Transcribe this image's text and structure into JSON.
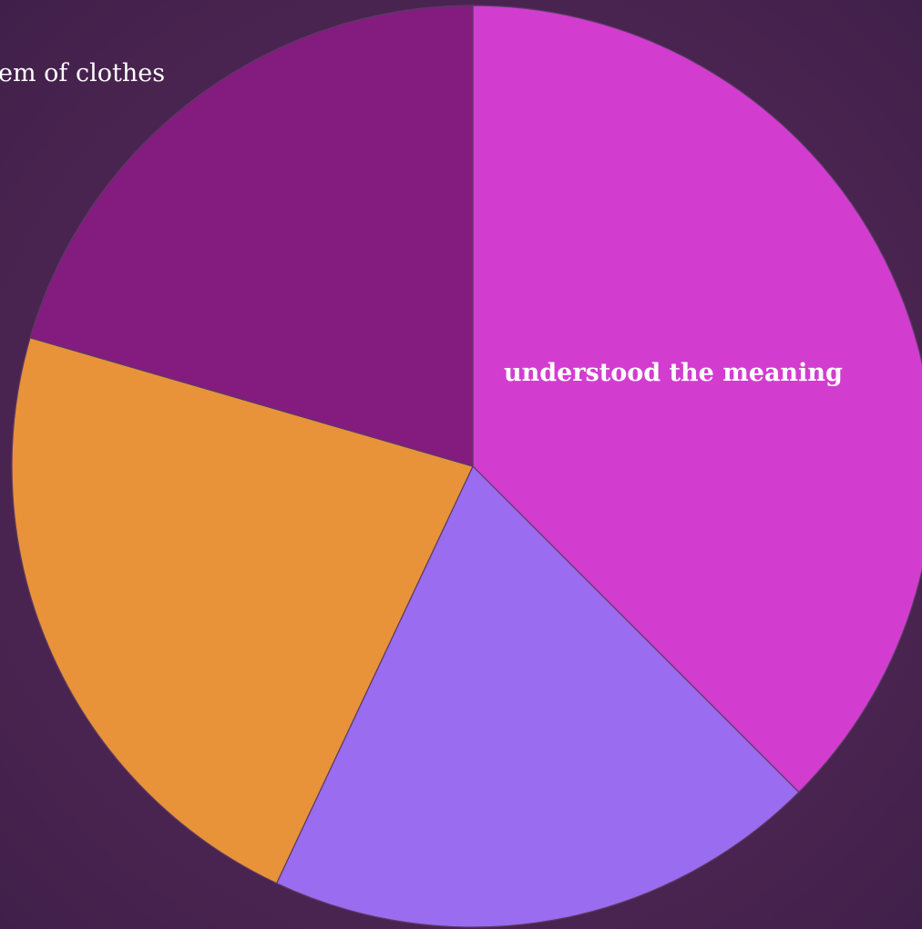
{
  "chart_data": {
    "type": "pie",
    "start_angle_deg": 0,
    "direction": "clockwise",
    "slices": [
      {
        "label": "understood the meaning",
        "value": 37.5,
        "color": "#d23dd0",
        "label_style": "inside"
      },
      {
        "label": "",
        "value": 19.5,
        "color": "#9a6cf0",
        "label_style": "none"
      },
      {
        "label": "",
        "value": 22.5,
        "color": "#e8923a",
        "label_style": "none"
      },
      {
        "label": "em of clothes",
        "value": 20.5,
        "color": "#831c7e",
        "label_style": "outside"
      }
    ]
  }
}
